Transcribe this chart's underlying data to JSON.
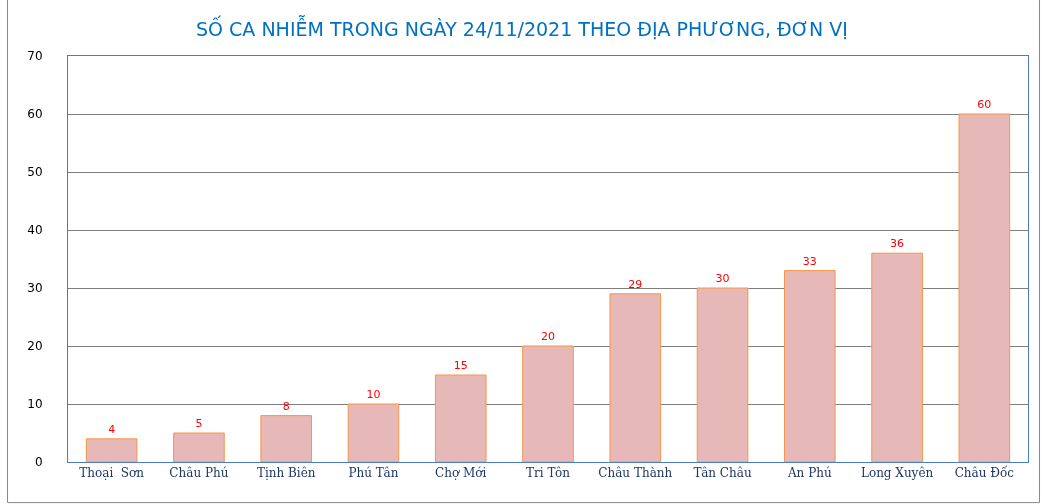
{
  "chart_data": {
    "type": "bar",
    "title": "SỐ CA NHIỄM TRONG NGÀY 24/11/2021 THEO ĐỊA PHƯƠNG, ĐƠN VỊ",
    "categories": [
      "Thoại  Sơn",
      "Châu Phú",
      "Tịnh Biên",
      "Phú Tân",
      "Chợ Mới",
      "Tri Tôn",
      "Châu Thành",
      "Tân Châu",
      "An Phú",
      "Long Xuyên",
      "Châu Đốc"
    ],
    "values": [
      4,
      5,
      8,
      10,
      15,
      20,
      29,
      30,
      33,
      36,
      60
    ],
    "color": "#e6b8b7",
    "ylim": [
      0,
      70
    ],
    "yticks": [
      0,
      10,
      20,
      30,
      40,
      50,
      60,
      70
    ],
    "grid": "y",
    "data_labels": true,
    "legend": false
  }
}
